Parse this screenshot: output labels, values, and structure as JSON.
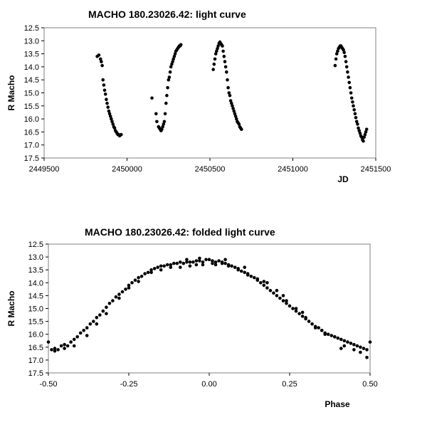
{
  "chart_data": [
    {
      "type": "scatter",
      "title": "MACHO 180.23026.42: light curve",
      "xlabel": "JD",
      "ylabel": "R Macho",
      "xlim": [
        2449500,
        2451500
      ],
      "ylim": [
        12.5,
        17.5
      ],
      "y_inverted": true,
      "x_ticks": [
        2449500,
        2450000,
        2450500,
        2451000,
        2451500
      ],
      "x_tick_labels": [
        "2449500",
        "2450000",
        "2450500",
        "2451000",
        "2451500"
      ],
      "y_ticks": [
        12.5,
        13.0,
        13.5,
        14.0,
        14.5,
        15.0,
        15.5,
        16.0,
        16.5,
        17.0,
        17.5
      ],
      "y_tick_labels": [
        "12.5",
        "13.0",
        "13.5",
        "14.0",
        "14.5",
        "15.0",
        "15.5",
        "16.0",
        "16.5",
        "17.0",
        "17.5"
      ],
      "grid": false,
      "marker_color": "#000000",
      "segments": [
        {
          "x": [
            2449820,
            2449830,
            2449840,
            2449845,
            2449850,
            2449855,
            2449860,
            2449865,
            2449870,
            2449875,
            2449880,
            2449885,
            2449890,
            2449895,
            2449900,
            2449905,
            2449910,
            2449915,
            2449920,
            2449925,
            2449930,
            2449935,
            2449940,
            2449945,
            2449950,
            2449955,
            2449960,
            2449965
          ],
          "y": [
            13.6,
            13.55,
            13.7,
            13.8,
            13.95,
            14.5,
            14.7,
            14.9,
            15.05,
            15.25,
            15.4,
            15.55,
            15.7,
            15.8,
            15.9,
            16.0,
            16.1,
            16.2,
            16.3,
            16.35,
            16.45,
            16.5,
            16.55,
            16.6,
            16.6,
            16.65,
            16.62,
            16.6
          ]
        },
        {
          "x": [
            2450150,
            2450175,
            2450180,
            2450190,
            2450195,
            2450200,
            2450205,
            2450210,
            2450215,
            2450220,
            2450225,
            2450230,
            2450235,
            2450240,
            2450245,
            2450250,
            2450255,
            2450260,
            2450265,
            2450270,
            2450275,
            2450280,
            2450285,
            2450290,
            2450295,
            2450300,
            2450305,
            2450310,
            2450315,
            2450320,
            2450325
          ],
          "y": [
            15.2,
            15.8,
            16.1,
            16.3,
            16.35,
            16.4,
            16.45,
            16.4,
            16.3,
            16.2,
            16.1,
            15.8,
            15.4,
            15.1,
            14.8,
            14.5,
            14.4,
            14.2,
            14.0,
            13.9,
            13.8,
            13.7,
            13.6,
            13.5,
            13.4,
            13.35,
            13.3,
            13.25,
            13.2,
            13.2,
            13.15
          ]
        },
        {
          "x": [
            2450520,
            2450525,
            2450530,
            2450535,
            2450540,
            2450545,
            2450550,
            2450555,
            2450560,
            2450565,
            2450570,
            2450575,
            2450580,
            2450585,
            2450590,
            2450595,
            2450600,
            2450605,
            2450610,
            2450615,
            2450620,
            2450625,
            2450630,
            2450635,
            2450640,
            2450645,
            2450650,
            2450655,
            2450660,
            2450665,
            2450670,
            2450675,
            2450680,
            2450685,
            2450690
          ],
          "y": [
            14.1,
            13.9,
            13.7,
            13.5,
            13.4,
            13.3,
            13.2,
            13.1,
            13.05,
            13.1,
            13.15,
            13.2,
            13.4,
            13.6,
            13.8,
            14.0,
            14.2,
            14.5,
            14.8,
            15.0,
            15.1,
            15.3,
            15.4,
            15.5,
            15.6,
            15.7,
            15.8,
            15.9,
            16.0,
            16.1,
            16.15,
            16.2,
            16.3,
            16.35,
            16.4
          ]
        },
        {
          "x": [
            2451255,
            2451260,
            2451265,
            2451270,
            2451275,
            2451280,
            2451285,
            2451290,
            2451295,
            2451300,
            2451305,
            2451310,
            2451315,
            2451320,
            2451325,
            2451330,
            2451335,
            2451340,
            2451345,
            2451350,
            2451355,
            2451360,
            2451365,
            2451370,
            2451375,
            2451380,
            2451385,
            2451390,
            2451395,
            2451400,
            2451405,
            2451410,
            2451415,
            2451420,
            2451425,
            2451430,
            2451435,
            2451440,
            2451445
          ],
          "y": [
            13.95,
            13.7,
            13.5,
            13.4,
            13.3,
            13.25,
            13.2,
            13.2,
            13.25,
            13.3,
            13.35,
            13.45,
            13.6,
            13.8,
            14.0,
            14.2,
            14.4,
            14.6,
            14.8,
            15.0,
            15.2,
            15.35,
            15.5,
            15.65,
            15.8,
            15.95,
            16.1,
            16.2,
            16.35,
            16.45,
            16.55,
            16.65,
            16.7,
            16.8,
            16.85,
            16.7,
            16.6,
            16.5,
            16.4
          ]
        }
      ]
    },
    {
      "type": "scatter",
      "title": "MACHO 180.23026.42: folded light curve",
      "xlabel": "Phase",
      "ylabel": "R Macho",
      "xlim": [
        -0.5,
        0.5
      ],
      "ylim": [
        12.5,
        17.5
      ],
      "y_inverted": true,
      "x_ticks": [
        -0.5,
        -0.25,
        0.0,
        0.25,
        0.5
      ],
      "x_tick_labels": [
        "-0.50",
        "-0.25",
        "0.00",
        "0.25",
        "0.50"
      ],
      "y_ticks": [
        12.5,
        13.0,
        13.5,
        14.0,
        14.5,
        15.0,
        15.5,
        16.0,
        16.5,
        17.0,
        17.5
      ],
      "y_tick_labels": [
        "12.5",
        "13.0",
        "13.5",
        "14.0",
        "14.5",
        "15.0",
        "15.5",
        "16.0",
        "16.5",
        "17.0",
        "17.5"
      ],
      "grid": false,
      "marker_color": "#000000",
      "x": [
        -0.5,
        -0.49,
        -0.48,
        -0.47,
        -0.46,
        -0.45,
        -0.44,
        -0.43,
        -0.42,
        -0.41,
        -0.4,
        -0.39,
        -0.38,
        -0.37,
        -0.36,
        -0.35,
        -0.34,
        -0.33,
        -0.32,
        -0.31,
        -0.3,
        -0.29,
        -0.28,
        -0.27,
        -0.26,
        -0.25,
        -0.24,
        -0.23,
        -0.22,
        -0.21,
        -0.2,
        -0.19,
        -0.18,
        -0.17,
        -0.16,
        -0.15,
        -0.14,
        -0.13,
        -0.12,
        -0.11,
        -0.1,
        -0.09,
        -0.08,
        -0.07,
        -0.06,
        -0.05,
        -0.04,
        -0.03,
        -0.02,
        -0.01,
        0.0,
        0.01,
        0.02,
        0.03,
        0.04,
        0.05,
        0.06,
        0.07,
        0.08,
        0.09,
        0.1,
        0.11,
        0.12,
        0.13,
        0.14,
        0.15,
        0.16,
        0.17,
        0.18,
        0.19,
        0.2,
        0.21,
        0.22,
        0.23,
        0.24,
        0.25,
        0.26,
        0.27,
        0.28,
        0.29,
        0.3,
        0.31,
        0.32,
        0.33,
        0.34,
        0.35,
        0.36,
        0.37,
        0.38,
        0.39,
        0.4,
        0.41,
        0.42,
        0.43,
        0.44,
        0.45,
        0.46,
        0.47,
        0.48,
        0.49,
        0.5,
        -0.48,
        -0.45,
        -0.42,
        -0.38,
        -0.35,
        -0.32,
        -0.28,
        -0.25,
        -0.22,
        -0.18,
        -0.15,
        -0.12,
        -0.09,
        -0.06,
        -0.04,
        -0.02,
        0.02,
        0.04,
        0.06,
        0.09,
        0.12,
        0.15,
        0.18,
        0.21,
        0.24,
        0.27,
        0.3,
        0.33,
        0.36,
        0.39,
        0.42,
        0.45,
        0.47,
        0.49,
        -0.07,
        -0.03,
        0.01,
        0.05,
        0.11,
        0.17,
        0.23,
        0.29,
        0.35,
        0.41
      ],
      "y": [
        16.3,
        16.6,
        16.55,
        16.6,
        16.45,
        16.4,
        16.45,
        16.3,
        16.2,
        16.1,
        15.95,
        15.85,
        15.75,
        15.6,
        15.5,
        15.35,
        15.25,
        15.1,
        14.95,
        14.8,
        14.7,
        14.55,
        14.45,
        14.35,
        14.25,
        14.1,
        14.0,
        13.9,
        13.8,
        13.75,
        13.65,
        13.6,
        13.5,
        13.45,
        13.4,
        13.35,
        13.35,
        13.3,
        13.3,
        13.25,
        13.25,
        13.2,
        13.25,
        13.2,
        13.2,
        13.2,
        13.15,
        13.15,
        13.2,
        13.1,
        13.1,
        13.15,
        13.2,
        13.15,
        13.2,
        13.25,
        13.3,
        13.35,
        13.4,
        13.45,
        13.55,
        13.6,
        13.65,
        13.75,
        13.8,
        13.9,
        14.0,
        14.1,
        14.2,
        14.3,
        14.4,
        14.5,
        14.6,
        14.7,
        14.8,
        14.9,
        15.0,
        15.1,
        15.2,
        15.3,
        15.4,
        15.5,
        15.6,
        15.7,
        15.75,
        15.85,
        15.95,
        16.0,
        16.05,
        16.1,
        16.15,
        16.2,
        16.25,
        16.3,
        16.35,
        16.4,
        16.45,
        16.5,
        16.55,
        16.6,
        16.3,
        16.65,
        16.55,
        16.45,
        16.05,
        15.6,
        15.2,
        14.6,
        14.2,
        13.95,
        13.6,
        13.5,
        13.4,
        13.4,
        13.35,
        13.3,
        13.3,
        13.3,
        13.25,
        13.35,
        13.5,
        13.7,
        13.85,
        14.0,
        14.3,
        14.7,
        15.0,
        15.35,
        15.75,
        16.0,
        16.1,
        16.45,
        16.6,
        16.7,
        16.9,
        13.1,
        13.05,
        13.25,
        13.1,
        13.4,
        13.95,
        14.5,
        15.15,
        15.85,
        16.55
      ]
    }
  ]
}
